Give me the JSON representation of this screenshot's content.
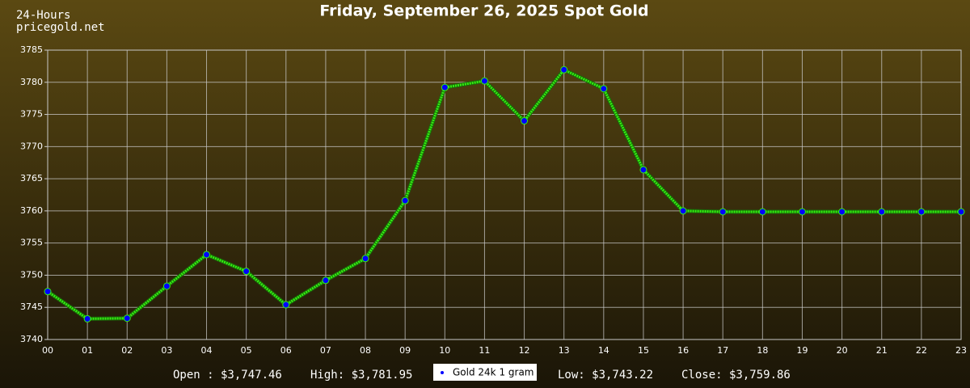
{
  "header": {
    "caption": "24-Hours",
    "site": "pricegold.net"
  },
  "chart_data": {
    "type": "line",
    "title": "Friday, September 26, 2025 Spot Gold",
    "categories": [
      "00",
      "01",
      "02",
      "03",
      "04",
      "05",
      "06",
      "07",
      "08",
      "09",
      "10",
      "11",
      "12",
      "13",
      "14",
      "15",
      "16",
      "17",
      "18",
      "19",
      "20",
      "21",
      "22",
      "23"
    ],
    "series": [
      {
        "name": "Gold 24k 1 gram",
        "color": "#33ee11",
        "marker_color": "#0000ff",
        "values": [
          3747.46,
          3743.22,
          3743.3,
          3748.3,
          3753.2,
          3750.6,
          3745.4,
          3749.2,
          3752.6,
          3761.6,
          3779.2,
          3780.2,
          3774.0,
          3781.95,
          3779.0,
          3766.4,
          3760.0,
          3759.86,
          3759.86,
          3759.86,
          3759.86,
          3759.86,
          3759.86,
          3759.86
        ]
      }
    ],
    "ylim": [
      3740,
      3785
    ],
    "yticks": [
      3740,
      3745,
      3750,
      3755,
      3760,
      3765,
      3770,
      3775,
      3780,
      3785
    ],
    "grid": true
  },
  "footer": {
    "stats": [
      "Open : $3,747.46",
      "High: $3,781.95",
      "Low: $3,743.22",
      "Close: $3,759.86"
    ]
  }
}
